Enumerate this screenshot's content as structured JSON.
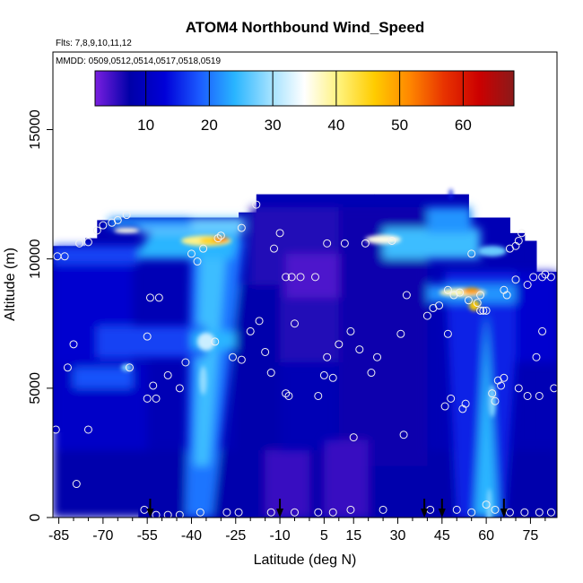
{
  "chart_data": {
    "type": "heatmap",
    "title": "ATOM4 Northbound Wind_Speed",
    "flights_note": "Flts: 7,8,9,10,11,12",
    "dates_note": "MMDD: 0509,0512,0514,0517,0518,0519",
    "xlabel": "Latitude (deg N)",
    "ylabel": "Altitude (m)",
    "xlim": [
      -87,
      84
    ],
    "ylim": [
      0,
      18000
    ],
    "x_ticks": [
      -85,
      -70,
      -55,
      -40,
      -25,
      -10,
      5,
      15,
      30,
      45,
      60,
      75
    ],
    "y_ticks": [
      0,
      5000,
      10000,
      15000
    ],
    "y_tick_labels": [
      "0",
      "5000",
      "10000",
      "15000"
    ],
    "colorbar": {
      "min": 2,
      "max": 68,
      "ticks": [
        10,
        20,
        30,
        40,
        50,
        60
      ],
      "tick_labels": [
        "10",
        "20",
        "30",
        "40",
        "50",
        "60"
      ],
      "colors": [
        "#7a1fe0",
        "#0000a8",
        "#0000d8",
        "#1b5bff",
        "#29b5ff",
        "#9ee0ff",
        "#ffffff",
        "#fff27a",
        "#ffcc00",
        "#ff8800",
        "#e83300",
        "#cc0000",
        "#8b1a1a"
      ]
    },
    "turnaround_markers_x": [
      -54,
      -10,
      39,
      45,
      66
    ],
    "sample_points": [
      [
        -85.5,
        10100
      ],
      [
        -83,
        10100
      ],
      [
        -78,
        10600
      ],
      [
        -75,
        10650
      ],
      [
        -72,
        11100
      ],
      [
        -70,
        11300
      ],
      [
        -67,
        11400
      ],
      [
        -65,
        11500
      ],
      [
        -62,
        11700
      ],
      [
        -54,
        8500
      ],
      [
        -51,
        8500
      ],
      [
        -55,
        7000
      ],
      [
        -80,
        6700
      ],
      [
        -82,
        5800
      ],
      [
        -61,
        5800
      ],
      [
        -53,
        5100
      ],
      [
        -48,
        5500
      ],
      [
        -52,
        4600
      ],
      [
        -55,
        4600
      ],
      [
        -44,
        5000
      ],
      [
        -42,
        6000
      ],
      [
        -38,
        9900
      ],
      [
        -40,
        10200
      ],
      [
        -36,
        10400
      ],
      [
        -32,
        6800
      ],
      [
        -31,
        10800
      ],
      [
        -30,
        10900
      ],
      [
        -23,
        11200
      ],
      [
        -18,
        12100
      ],
      [
        -23,
        6100
      ],
      [
        -26,
        6200
      ],
      [
        -20,
        7200
      ],
      [
        -17,
        7600
      ],
      [
        -15,
        6400
      ],
      [
        -13,
        5600
      ],
      [
        -12,
        10400
      ],
      [
        -10,
        11000
      ],
      [
        -8,
        9300
      ],
      [
        -6,
        9300
      ],
      [
        -5,
        7500
      ],
      [
        -8,
        4800
      ],
      [
        -7,
        4700
      ],
      [
        -3,
        9300
      ],
      [
        2,
        9300
      ],
      [
        3,
        4700
      ],
      [
        5,
        5500
      ],
      [
        6,
        10600
      ],
      [
        6,
        6200
      ],
      [
        8,
        5400
      ],
      [
        10,
        6700
      ],
      [
        12,
        10600
      ],
      [
        14,
        7200
      ],
      [
        17,
        6500
      ],
      [
        19,
        10600
      ],
      [
        23,
        6200
      ],
      [
        21,
        5600
      ],
      [
        15,
        3100
      ],
      [
        28,
        10700
      ],
      [
        31,
        7100
      ],
      [
        33,
        8600
      ],
      [
        32,
        3200
      ],
      [
        42,
        8100
      ],
      [
        44,
        8200
      ],
      [
        40,
        7800
      ],
      [
        47,
        8800
      ],
      [
        49,
        8600
      ],
      [
        51,
        8700
      ],
      [
        47,
        7100
      ],
      [
        46,
        4300
      ],
      [
        48,
        4600
      ],
      [
        52,
        4200
      ],
      [
        53,
        4400
      ],
      [
        54,
        8400
      ],
      [
        55,
        10200
      ],
      [
        57,
        8300
      ],
      [
        58,
        8000
      ],
      [
        59,
        8000
      ],
      [
        60,
        8000
      ],
      [
        58,
        8600
      ],
      [
        62,
        4800
      ],
      [
        63,
        4500
      ],
      [
        64,
        5300
      ],
      [
        65,
        5100
      ],
      [
        66,
        5400
      ],
      [
        66,
        8800
      ],
      [
        67,
        8600
      ],
      [
        68,
        10400
      ],
      [
        70,
        10500
      ],
      [
        71,
        10700
      ],
      [
        72,
        11000
      ],
      [
        70,
        9200
      ],
      [
        74,
        9000
      ],
      [
        76,
        9300
      ],
      [
        79,
        9300
      ],
      [
        80,
        9400
      ],
      [
        82,
        9300
      ],
      [
        79,
        7200
      ],
      [
        77,
        6200
      ],
      [
        74,
        4700
      ],
      [
        71,
        5000
      ],
      [
        78,
        4700
      ],
      [
        83,
        5000
      ],
      [
        -75,
        3400
      ],
      [
        -86,
        3400
      ],
      [
        -79,
        1300
      ],
      [
        -56,
        300
      ],
      [
        -52,
        100
      ],
      [
        -48,
        100
      ],
      [
        -44,
        100
      ],
      [
        -37,
        200
      ],
      [
        -28,
        200
      ],
      [
        -24,
        200
      ],
      [
        -13,
        200
      ],
      [
        -5,
        200
      ],
      [
        3,
        200
      ],
      [
        8,
        200
      ],
      [
        14,
        300
      ],
      [
        25,
        300
      ],
      [
        41,
        300
      ],
      [
        50,
        300
      ],
      [
        55,
        200
      ],
      [
        60,
        500
      ],
      [
        63,
        300
      ],
      [
        68,
        200
      ],
      [
        73,
        200
      ],
      [
        78,
        200
      ],
      [
        82,
        200
      ]
    ]
  }
}
